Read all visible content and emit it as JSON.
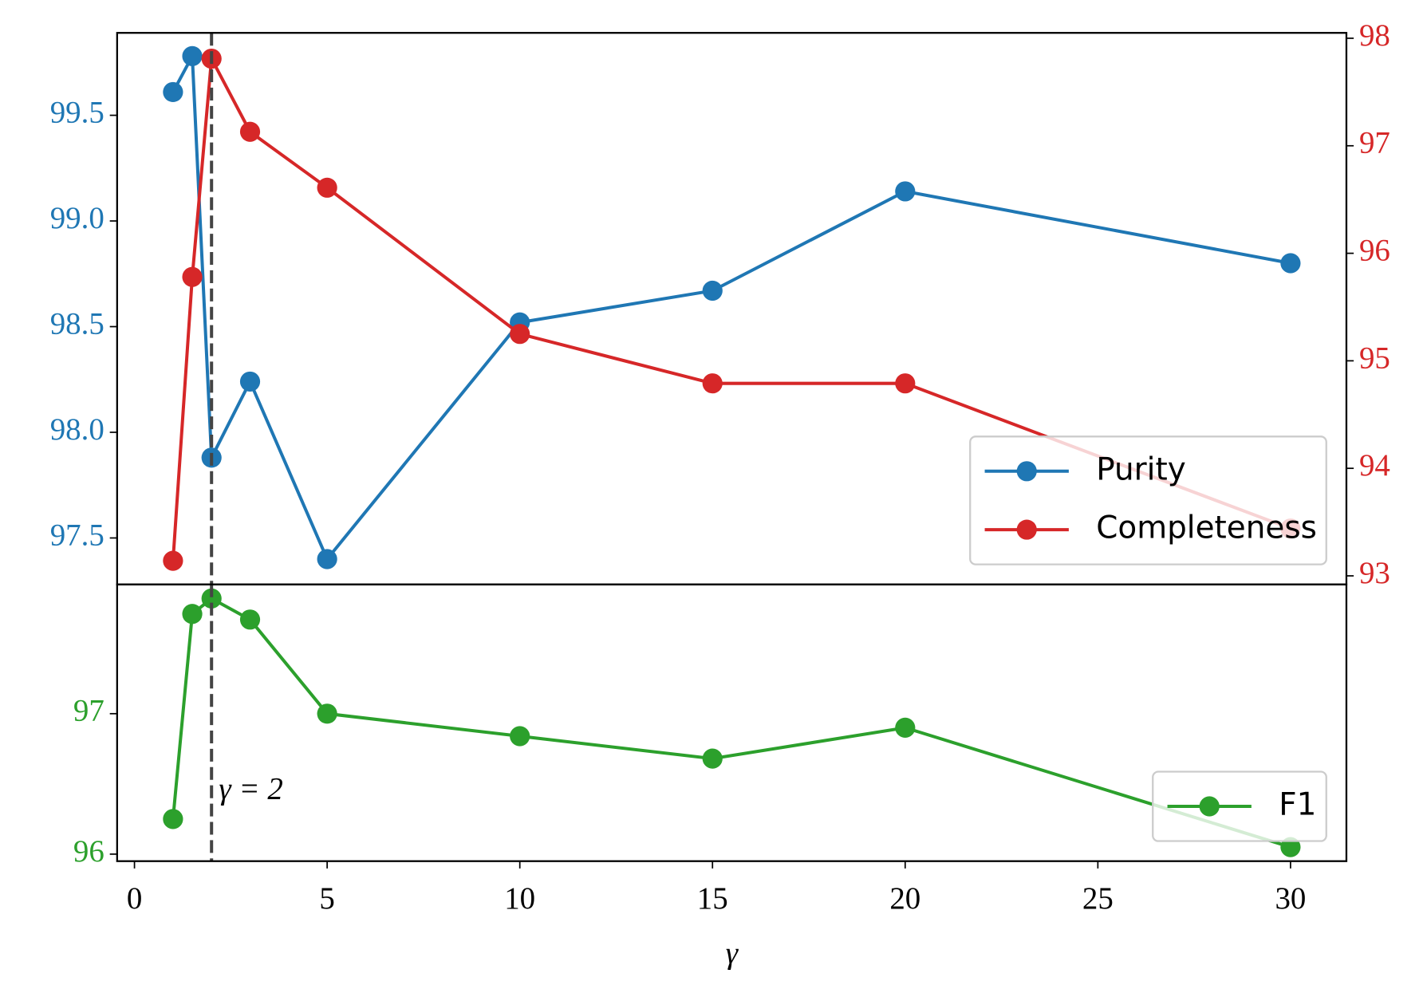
{
  "chart_data": [
    {
      "type": "line",
      "x": [
        1,
        1.5,
        2,
        3,
        5,
        10,
        15,
        20,
        30
      ],
      "xlim": [
        -0.45,
        31.45
      ],
      "ylim": [
        97.28,
        99.89
      ],
      "yticks": [
        97.5,
        {
          "value": 98,
          "label": "98.0"
        },
        98.5,
        {
          "value": 99,
          "label": "99.0"
        },
        99.5
      ],
      "y2lim": [
        92.92,
        98.05
      ],
      "y2ticks": [
        93,
        94,
        95,
        96,
        97,
        98
      ],
      "series": [
        {
          "name": "Purity",
          "color": "#1f77b4",
          "values": [
            99.61,
            99.78,
            97.88,
            98.24,
            97.4,
            98.52,
            98.67,
            99.14,
            98.8
          ]
        },
        {
          "name": "Completeness",
          "color": "#d62728",
          "axis": "y2",
          "values": [
            93.14,
            95.78,
            97.81,
            97.13,
            96.61,
            95.25,
            94.79,
            94.79,
            93.44
          ]
        }
      ],
      "vline": {
        "x": 2,
        "color": "#444444"
      },
      "legend": "lower right"
    },
    {
      "type": "line",
      "x": [
        1,
        1.5,
        2,
        3,
        5,
        10,
        15,
        20,
        30
      ],
      "xlim": [
        -0.45,
        31.45
      ],
      "xticks": [
        0,
        5,
        10,
        15,
        20,
        25,
        30
      ],
      "xlabel": "γ",
      "ylim": [
        95.95,
        97.92
      ],
      "yticks": [
        96,
        97
      ],
      "series": [
        {
          "name": "F1",
          "color": "#2ca02c",
          "values": [
            96.25,
            97.71,
            97.82,
            97.67,
            97.0,
            96.84,
            96.68,
            96.9,
            96.05
          ]
        }
      ],
      "vline": {
        "x": 2,
        "color": "#444444"
      },
      "annotation": "γ = 2",
      "legend": "lower right"
    }
  ]
}
